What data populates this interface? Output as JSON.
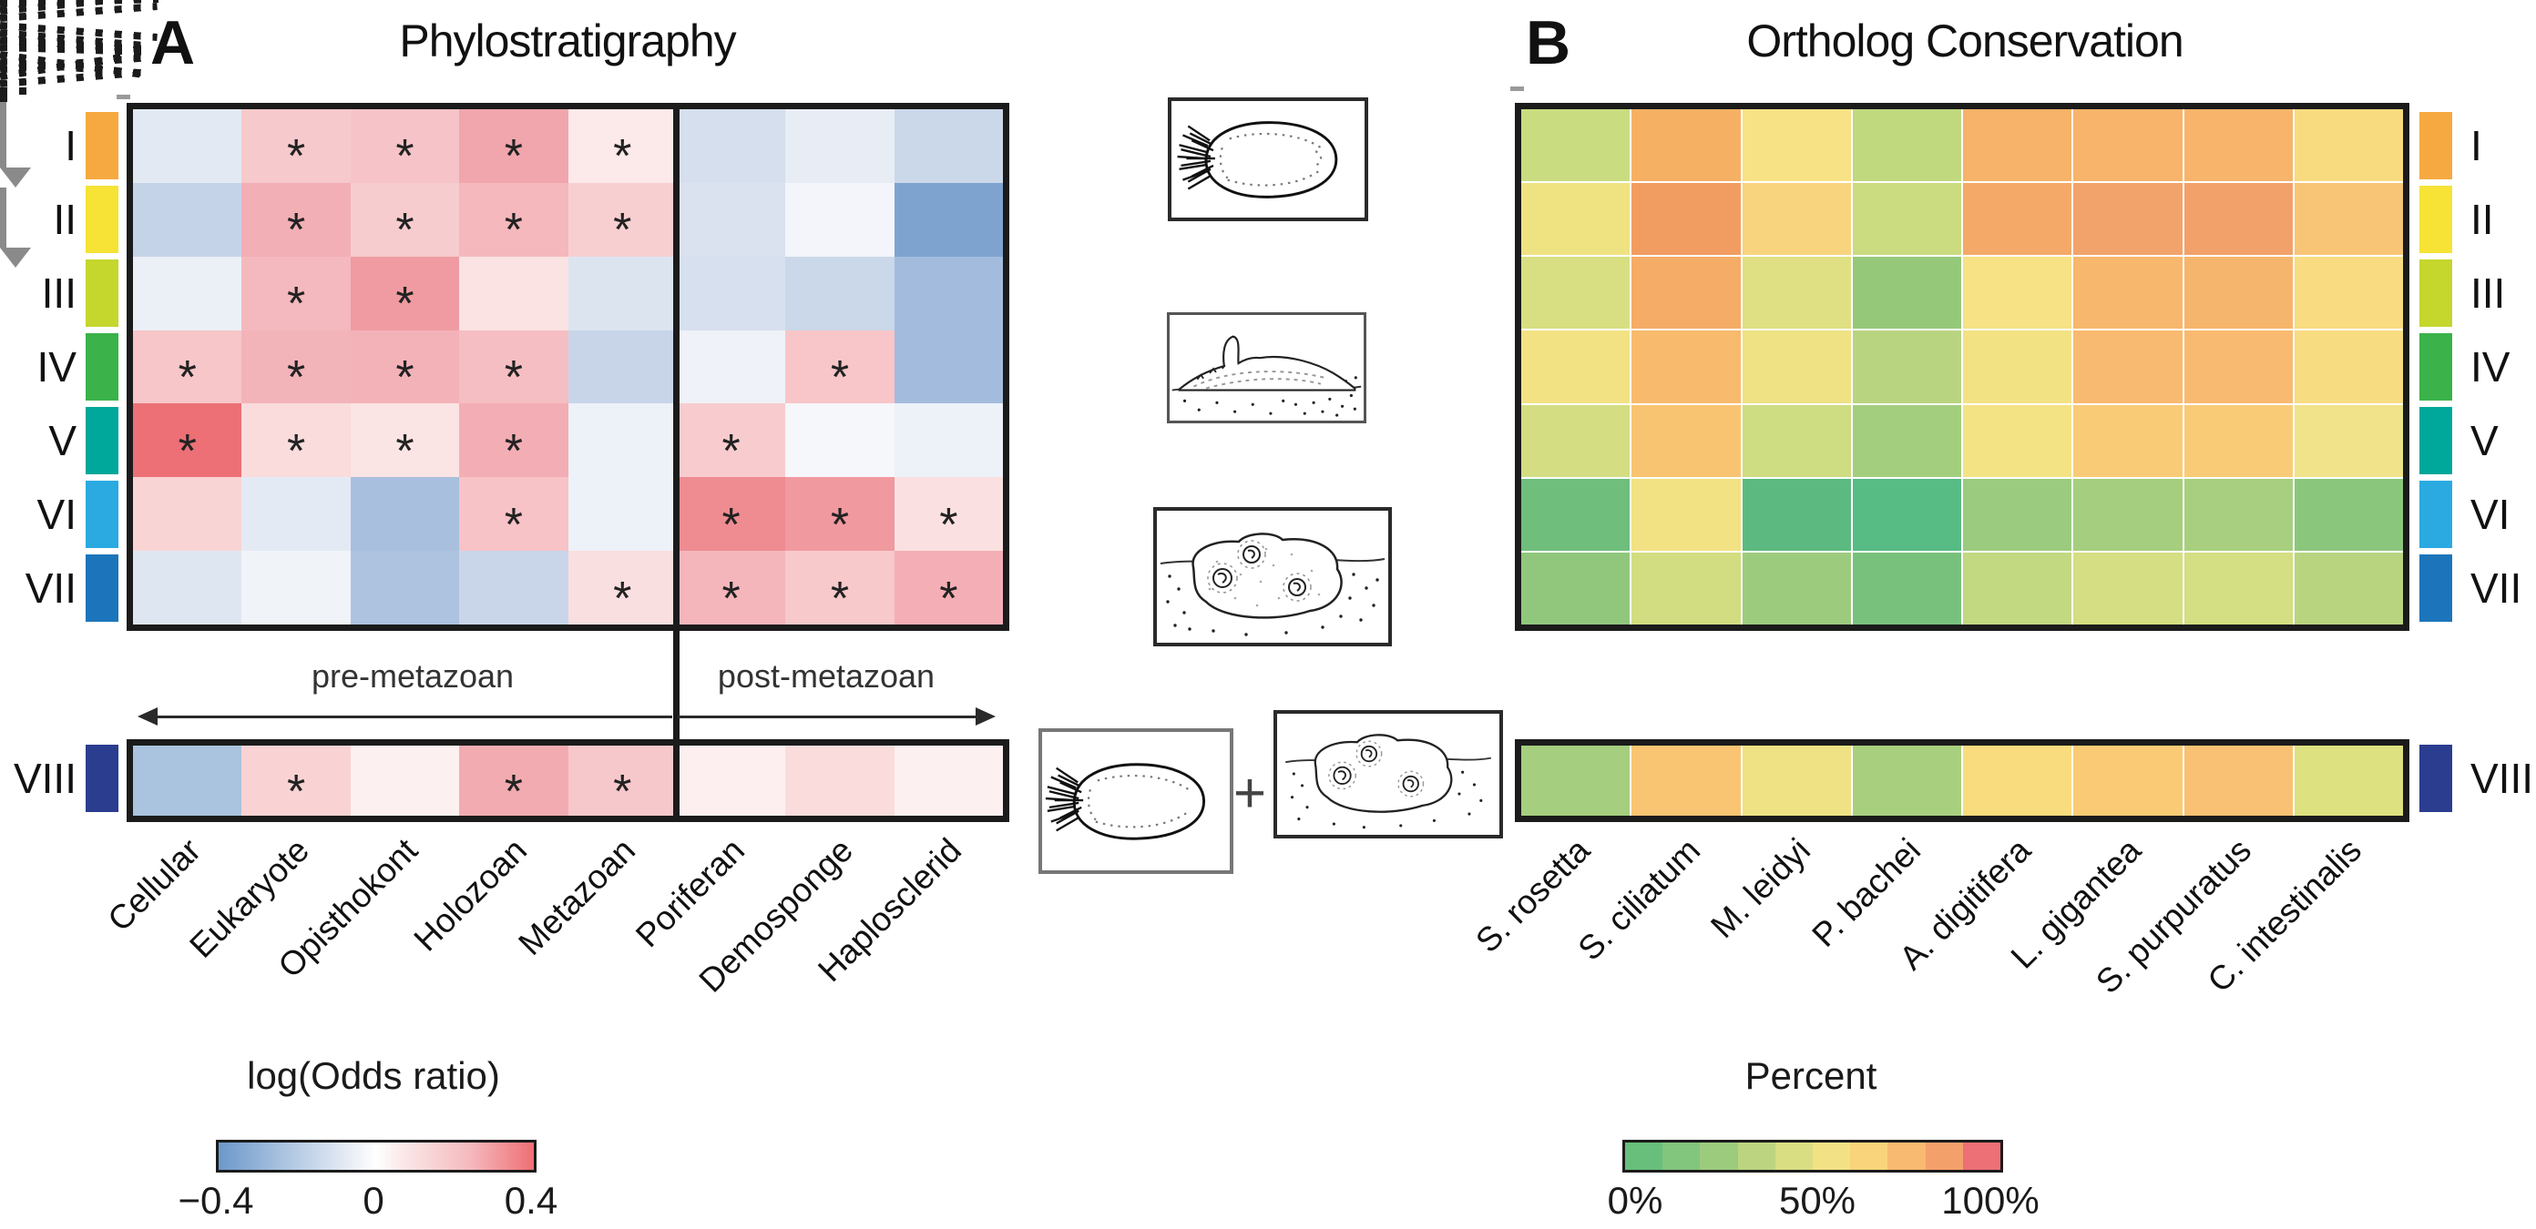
{
  "panel_a": {
    "label": "A",
    "pre_label": "pre-metazoan",
    "post_label": "post-metazoan",
    "legend_title": "log(Odds ratio)",
    "legend_ticks": [
      "−0.4",
      "0",
      "0.4"
    ],
    "legend_gradient": [
      "#6C98CA",
      "#FFFFFF",
      "#EE6F74"
    ]
  },
  "panel_b": {
    "label": "B",
    "legend_title": "Percent",
    "legend_ticks": [
      "0%",
      "50%",
      "100%"
    ],
    "legend_steps": [
      "#67BF7B",
      "#82C57C",
      "#9DCB7E",
      "#BCD480",
      "#D9DE82",
      "#F2E285",
      "#F9D47A",
      "#F8BA70",
      "#F4A06B",
      "#EC7076"
    ]
  },
  "middle": {
    "plus": "+",
    "drawings": [
      "sponge-larva",
      "sponge-early-metamorph",
      "sponge-juvenile",
      "sponge-larva",
      "sponge-juvenile"
    ]
  },
  "row_colors": [
    "#F7A941",
    "#F6E335",
    "#C5D62D",
    "#3BB24A",
    "#00A79B",
    "#2BAAE1",
    "#1C75BA",
    "#2B3D8F"
  ],
  "chart_data": [
    {
      "type": "heatmap",
      "title": "Phylostratigraphy",
      "value_label": "log(Odds ratio)",
      "colorbar": {
        "min": -0.4,
        "mid": 0,
        "max": 0.4,
        "min_label": "−0.4",
        "mid_label": "0",
        "max_label": "0.4"
      },
      "rows": [
        "I",
        "II",
        "III",
        "IV",
        "V",
        "VI",
        "VII",
        "VIII"
      ],
      "columns": [
        "Cellular",
        "Eukaryote",
        "Opisthokont",
        "Holozoan",
        "Metazoan",
        "Poriferan",
        "Demosponge",
        "Haplosclerid"
      ],
      "column_groups": {
        "pre-metazoan": [
          "Cellular",
          "Eukaryote",
          "Opisthokont",
          "Holozoan",
          "Metazoan"
        ],
        "post-metazoan": [
          "Poriferan",
          "Demosponge",
          "Haplosclerid"
        ]
      },
      "values": [
        [
          -0.08,
          0.16,
          0.17,
          0.26,
          0.05,
          -0.12,
          -0.07,
          -0.15
        ],
        [
          -0.17,
          0.23,
          0.14,
          0.2,
          0.13,
          -0.1,
          -0.03,
          -0.35
        ],
        [
          -0.05,
          0.2,
          0.28,
          0.07,
          -0.1,
          -0.11,
          -0.15,
          -0.25
        ],
        [
          0.16,
          0.21,
          0.22,
          0.18,
          -0.16,
          -0.04,
          0.16,
          -0.25
        ],
        [
          0.39,
          0.1,
          0.07,
          0.23,
          -0.05,
          0.14,
          -0.02,
          -0.05
        ],
        [
          0.12,
          -0.07,
          -0.24,
          0.17,
          -0.05,
          0.32,
          0.28,
          0.08
        ],
        [
          -0.08,
          -0.03,
          -0.22,
          -0.15,
          0.09,
          0.2,
          0.15,
          0.22
        ],
        [
          -0.22,
          0.12,
          0.03,
          0.23,
          0.15,
          0.04,
          0.09,
          0.04
        ]
      ],
      "significant": [
        [
          0,
          1,
          1,
          1,
          1,
          0,
          0,
          0
        ],
        [
          0,
          1,
          1,
          1,
          1,
          0,
          0,
          0
        ],
        [
          0,
          1,
          1,
          0,
          0,
          0,
          0,
          0
        ],
        [
          1,
          1,
          1,
          1,
          0,
          0,
          1,
          0
        ],
        [
          1,
          1,
          1,
          1,
          0,
          1,
          0,
          0
        ],
        [
          0,
          0,
          0,
          1,
          0,
          1,
          1,
          1
        ],
        [
          0,
          0,
          0,
          0,
          1,
          1,
          1,
          1
        ],
        [
          0,
          1,
          0,
          1,
          1,
          0,
          0,
          0
        ]
      ],
      "cell_colors": [
        [
          "#E3E9F3",
          "#F6C9CC",
          "#F6C4C8",
          "#F0A6AC",
          "#FCE9E9",
          "#D5DFEE",
          "#E8EDF5",
          "#CBD8EA"
        ],
        [
          "#C5D3E8",
          "#F2AFB5",
          "#F7CCCE",
          "#F4B8BD",
          "#F8CFD1",
          "#DAE2F0",
          "#F3F5FA",
          "#7FA3CF"
        ],
        [
          "#EBF0F7",
          "#F4B9BE",
          "#EF9BA1",
          "#FBE3E3",
          "#DCE4F0",
          "#D7E0EE",
          "#CBD8EA",
          "#A3BCDD"
        ],
        [
          "#F7C6C9",
          "#F3B4B9",
          "#F3B2B8",
          "#F5BEC2",
          "#C8D5E9",
          "#EFF2F8",
          "#F8C6C8",
          "#A3BCDD"
        ],
        [
          "#EC7076",
          "#FADCDD",
          "#FBE4E4",
          "#F2AEB4",
          "#EDF1F8",
          "#F8CCCE",
          "#F6F7FA",
          "#EDF1F8"
        ],
        [
          "#F9D4D5",
          "#E4EAF4",
          "#A9BFDE",
          "#F7C3C6",
          "#EDF1F8",
          "#EE8C91",
          "#F0999F",
          "#FBE0E1"
        ],
        [
          "#DEE6F1",
          "#F0F3F8",
          "#AEC3E0",
          "#C9D6E9",
          "#FADFE0",
          "#F4B6BB",
          "#F7C9CB",
          "#F3AFB5"
        ],
        [
          "#AAC3DF",
          "#F9D3D4",
          "#FDF0F0",
          "#F2ACB1",
          "#F7C8CB",
          "#FDEFEF",
          "#FADCDC",
          "#FDF0F0"
        ]
      ]
    },
    {
      "type": "heatmap",
      "title": "Ortholog Conservation",
      "value_label": "Percent",
      "colorbar": {
        "min": 0,
        "mid": 50,
        "max": 100,
        "min_label": "0%",
        "mid_label": "50%",
        "max_label": "100%"
      },
      "rows": [
        "I",
        "II",
        "III",
        "IV",
        "V",
        "VI",
        "VII",
        "VIII"
      ],
      "columns": [
        "S. rosetta",
        "S. ciliatum",
        "M. leidyi",
        "P. bachei",
        "A. digitifera",
        "L. gigantea",
        "S. purpuratus",
        "C. intestinalis"
      ],
      "values": [
        [
          40,
          72,
          55,
          36,
          71,
          70,
          70,
          57
        ],
        [
          52,
          76,
          60,
          40,
          73,
          74,
          74,
          63
        ],
        [
          45,
          72,
          47,
          25,
          53,
          69,
          70,
          56
        ],
        [
          51,
          67,
          52,
          34,
          52,
          67,
          67,
          56
        ],
        [
          43,
          64,
          41,
          29,
          52,
          62,
          62,
          50
        ],
        [
          12,
          51,
          8,
          7,
          26,
          30,
          30,
          22
        ],
        [
          23,
          42,
          27,
          15,
          37,
          44,
          44,
          34
        ],
        [
          30,
          63,
          51,
          30,
          56,
          62,
          64,
          46
        ]
      ],
      "cell_colors": [
        [
          "#C9DC7F",
          "#F6B064",
          "#F8E286",
          "#C0D87E",
          "#F6B369",
          "#F7B46A",
          "#F7B46A",
          "#F9DB7F"
        ],
        [
          "#EFE281",
          "#F19D62",
          "#F8D47E",
          "#CADB80",
          "#F4A968",
          "#F2A36C",
          "#F2A16B",
          "#F8C577"
        ],
        [
          "#D8DF82",
          "#F4AC67",
          "#DFE083",
          "#96C87A",
          "#F7E285",
          "#F7B76D",
          "#F6B56C",
          "#F9DC81"
        ],
        [
          "#F2E283",
          "#F8BA6D",
          "#EFE284",
          "#B9D480",
          "#F3E284",
          "#F8BA70",
          "#F8BA70",
          "#F8DC82"
        ],
        [
          "#D4DD82",
          "#F9C471",
          "#CEDC82",
          "#A3CE7E",
          "#F3E385",
          "#FACB77",
          "#FACB77",
          "#F0E389"
        ],
        [
          "#6FBE7B",
          "#F2E284",
          "#5CBA80",
          "#57BB84",
          "#9BCB7E",
          "#A5CE7E",
          "#A8CF7F",
          "#8BC67D"
        ],
        [
          "#90C77D",
          "#D2DD81",
          "#9DCB7E",
          "#78C17D",
          "#C2D881",
          "#D5DE82",
          "#D4DE82",
          "#B8D47F"
        ],
        [
          "#A5CE7E",
          "#F9C573",
          "#EEE285",
          "#A8CF7E",
          "#F9DC7D",
          "#FACB74",
          "#F9C173",
          "#DDE180"
        ]
      ]
    }
  ]
}
